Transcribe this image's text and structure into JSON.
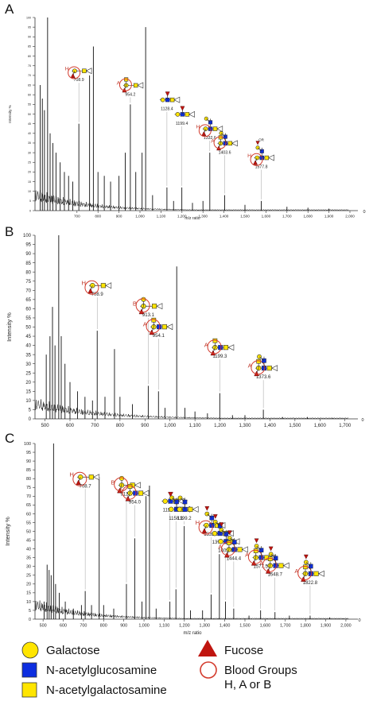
{
  "chart_data": [
    {
      "panel": "A",
      "type": "line",
      "xlabel": "m/z ratio",
      "ylabel": "Intensity %",
      "xticks": [
        700,
        800,
        900,
        1000,
        1100,
        1200,
        1300,
        1400,
        1500,
        1600,
        1700,
        1800,
        1900,
        2000
      ],
      "xtick_labels": [
        "700",
        "800",
        "900",
        "1,000",
        "1,100",
        "1,200",
        "1,300",
        "1,400",
        "1,500",
        "1,600",
        "1,700",
        "1,800",
        "1,900",
        "2,000"
      ],
      "xlim": [
        500,
        2000
      ],
      "yticks": [
        0,
        5,
        10,
        15,
        20,
        25,
        30,
        35,
        40,
        45,
        50,
        55,
        60,
        65,
        70,
        75,
        80,
        85,
        90,
        95,
        100
      ],
      "ylim": [
        0,
        100
      ],
      "right_zero_label": "0",
      "peaks": [
        {
          "x": 525,
          "y": 65
        },
        {
          "x": 535,
          "y": 58
        },
        {
          "x": 545,
          "y": 52
        },
        {
          "x": 560,
          "y": 100
        },
        {
          "x": 572,
          "y": 40
        },
        {
          "x": 585,
          "y": 35
        },
        {
          "x": 600,
          "y": 30
        },
        {
          "x": 620,
          "y": 25
        },
        {
          "x": 640,
          "y": 20
        },
        {
          "x": 660,
          "y": 18
        },
        {
          "x": 680,
          "y": 15
        },
        {
          "x": 708.9,
          "y": 45
        },
        {
          "x": 760,
          "y": 70
        },
        {
          "x": 778,
          "y": 85
        },
        {
          "x": 800,
          "y": 20
        },
        {
          "x": 830,
          "y": 18
        },
        {
          "x": 860,
          "y": 15
        },
        {
          "x": 900,
          "y": 18
        },
        {
          "x": 930,
          "y": 30
        },
        {
          "x": 954.2,
          "y": 55
        },
        {
          "x": 980,
          "y": 20
        },
        {
          "x": 1010,
          "y": 30
        },
        {
          "x": 1027,
          "y": 95
        },
        {
          "x": 1060,
          "y": 8
        },
        {
          "x": 1128.4,
          "y": 12
        },
        {
          "x": 1160,
          "y": 5
        },
        {
          "x": 1199.4,
          "y": 12
        },
        {
          "x": 1250,
          "y": 4
        },
        {
          "x": 1300,
          "y": 5
        },
        {
          "x": 1332.6,
          "y": 30
        },
        {
          "x": 1403.6,
          "y": 8
        },
        {
          "x": 1500,
          "y": 3
        },
        {
          "x": 1577.8,
          "y": 5
        },
        {
          "x": 1700,
          "y": 2
        },
        {
          "x": 1800,
          "y": 1.5
        },
        {
          "x": 1900,
          "y": 1
        }
      ],
      "annotations": [
        {
          "label": "708.9",
          "x": 708.9,
          "blood_group": "H"
        },
        {
          "label": "954.2",
          "x": 954.2,
          "blood_group": "A"
        },
        {
          "label": "1128.4",
          "x": 1128.4
        },
        {
          "label": "1199.4",
          "x": 1199.4
        },
        {
          "label": "1332.6",
          "x": 1332.6,
          "blood_group": "H"
        },
        {
          "label": "1403.6",
          "x": 1403.6,
          "blood_group": "A"
        },
        {
          "label": "1577.8",
          "x": 1577.8,
          "blood_group": "H",
          "note": "OR"
        }
      ]
    },
    {
      "panel": "B",
      "type": "line",
      "xlabel": "",
      "ylabel": "Intensity %",
      "xticks": [
        500,
        600,
        700,
        800,
        900,
        1000,
        1100,
        1200,
        1300,
        1400,
        1500,
        1600,
        1700
      ],
      "xtick_labels": [
        "500",
        "600",
        "700",
        "800",
        "900",
        "1,000",
        "1,100",
        "1,200",
        "1,300",
        "1,400",
        "1,500",
        "1,600",
        "1,700"
      ],
      "xlim": [
        460,
        1720
      ],
      "yticks": [
        0,
        5,
        10,
        15,
        20,
        25,
        30,
        35,
        40,
        45,
        50,
        55,
        60,
        65,
        70,
        75,
        80,
        85,
        90,
        95,
        100
      ],
      "ylim": [
        0,
        100
      ],
      "right_zero_label": "0",
      "peaks": [
        {
          "x": 505,
          "y": 35
        },
        {
          "x": 520,
          "y": 45
        },
        {
          "x": 530,
          "y": 61
        },
        {
          "x": 540,
          "y": 40
        },
        {
          "x": 555,
          "y": 100
        },
        {
          "x": 565,
          "y": 45
        },
        {
          "x": 580,
          "y": 30
        },
        {
          "x": 600,
          "y": 20
        },
        {
          "x": 630,
          "y": 15
        },
        {
          "x": 660,
          "y": 12
        },
        {
          "x": 690,
          "y": 10
        },
        {
          "x": 708.9,
          "y": 48
        },
        {
          "x": 740,
          "y": 12
        },
        {
          "x": 778,
          "y": 38
        },
        {
          "x": 800,
          "y": 12
        },
        {
          "x": 850,
          "y": 8
        },
        {
          "x": 913.1,
          "y": 18
        },
        {
          "x": 954.1,
          "y": 15
        },
        {
          "x": 980,
          "y": 6
        },
        {
          "x": 1027,
          "y": 83
        },
        {
          "x": 1060,
          "y": 6
        },
        {
          "x": 1100,
          "y": 4
        },
        {
          "x": 1150,
          "y": 3
        },
        {
          "x": 1199.3,
          "y": 14
        },
        {
          "x": 1250,
          "y": 2
        },
        {
          "x": 1300,
          "y": 2
        },
        {
          "x": 1373.6,
          "y": 5
        },
        {
          "x": 1450,
          "y": 1
        },
        {
          "x": 1550,
          "y": 1
        },
        {
          "x": 1650,
          "y": 0.5
        }
      ],
      "annotations": [
        {
          "label": "708.9",
          "x": 708.9,
          "blood_group": "H"
        },
        {
          "label": "913.1",
          "x": 913.1,
          "blood_group": "B"
        },
        {
          "label": "954.1",
          "x": 954.1,
          "blood_group": "A"
        },
        {
          "label": "1199.3",
          "x": 1199.3,
          "blood_group": "A"
        },
        {
          "label": "1373.6",
          "x": 1373.6,
          "blood_group": "A"
        }
      ]
    },
    {
      "panel": "C",
      "type": "line",
      "xlabel": "m/z ratio",
      "ylabel": "Intensity %",
      "xticks": [
        500,
        600,
        700,
        800,
        900,
        1000,
        1100,
        1200,
        1300,
        1400,
        1500,
        1600,
        1700,
        1800,
        1900,
        2000
      ],
      "xtick_labels": [
        "500",
        "600",
        "700",
        "800",
        "900",
        "1,000",
        "1,100",
        "1,200",
        "1,300",
        "1,400",
        "1,500",
        "1,600",
        "1,700",
        "1,800",
        "1,900",
        "2,000"
      ],
      "xlim": [
        460,
        2020
      ],
      "yticks": [
        0,
        5,
        10,
        15,
        20,
        25,
        30,
        35,
        40,
        45,
        50,
        55,
        60,
        65,
        70,
        75,
        80,
        85,
        90,
        95,
        100
      ],
      "ylim": [
        0,
        100
      ],
      "right_zero_label": "0",
      "peaks": [
        {
          "x": 505,
          "y": 10
        },
        {
          "x": 520,
          "y": 31
        },
        {
          "x": 530,
          "y": 28
        },
        {
          "x": 540,
          "y": 25
        },
        {
          "x": 552,
          "y": 100
        },
        {
          "x": 562,
          "y": 20
        },
        {
          "x": 580,
          "y": 15
        },
        {
          "x": 610,
          "y": 10
        },
        {
          "x": 650,
          "y": 6
        },
        {
          "x": 690,
          "y": 8
        },
        {
          "x": 708.7,
          "y": 16
        },
        {
          "x": 740,
          "y": 8
        },
        {
          "x": 778,
          "y": 81
        },
        {
          "x": 800,
          "y": 8
        },
        {
          "x": 850,
          "y": 6
        },
        {
          "x": 912.9,
          "y": 20
        },
        {
          "x": 954,
          "y": 46
        },
        {
          "x": 990,
          "y": 10
        },
        {
          "x": 1010,
          "y": 70
        },
        {
          "x": 1027,
          "y": 76
        },
        {
          "x": 1060,
          "y": 6
        },
        {
          "x": 1128.2,
          "y": 10
        },
        {
          "x": 1158.1,
          "y": 17
        },
        {
          "x": 1199.2,
          "y": 53
        },
        {
          "x": 1230,
          "y": 5
        },
        {
          "x": 1290,
          "y": 5
        },
        {
          "x": 1332.3,
          "y": 14
        },
        {
          "x": 1373.4,
          "y": 37
        },
        {
          "x": 1403.4,
          "y": 10
        },
        {
          "x": 1444.4,
          "y": 6
        },
        {
          "x": 1520,
          "y": 2
        },
        {
          "x": 1577.5,
          "y": 5
        },
        {
          "x": 1648.7,
          "y": 4
        },
        {
          "x": 1720,
          "y": 2
        },
        {
          "x": 1822.8,
          "y": 2
        },
        {
          "x": 1920,
          "y": 1
        }
      ],
      "annotations": [
        {
          "label": "708.7",
          "x": 708.7,
          "blood_group": "H"
        },
        {
          "label": "912.9",
          "x": 912.9,
          "blood_group": "B"
        },
        {
          "label": "954.0",
          "x": 954.0,
          "blood_group": "A"
        },
        {
          "label": "1128.2",
          "x": 1128.2
        },
        {
          "label": "1158.1",
          "x": 1158.1
        },
        {
          "label": "1199.2",
          "x": 1199.2
        },
        {
          "label": "1332.3",
          "x": 1332.3,
          "blood_group": "H"
        },
        {
          "label": "1373.4",
          "x": 1373.4
        },
        {
          "label": "1403.4",
          "x": 1403.4
        },
        {
          "label": "1444.4",
          "x": 1444.4,
          "blood_group": "A"
        },
        {
          "label": "1577.5",
          "x": 1577.5,
          "blood_group": "A"
        },
        {
          "label": "1648.7",
          "x": 1648.7,
          "blood_group": "A"
        },
        {
          "label": "1822.8",
          "x": 1822.8,
          "blood_group": "A"
        }
      ]
    }
  ],
  "legend": {
    "items": [
      {
        "label": "Galactose",
        "shape": "circle",
        "fill": "#ffe500"
      },
      {
        "label": "Fucose",
        "shape": "triangle",
        "fill": "#c0150f"
      },
      {
        "label": "N-acetylglucosamine",
        "shape": "square",
        "fill": "#0d2ee0"
      },
      {
        "label": "Blood Groups",
        "label2": "H, A or B",
        "shape": "ring",
        "stroke": "#d33a2c"
      },
      {
        "label": "N-acetylgalactosamine",
        "shape": "square",
        "fill": "#ffe500"
      }
    ]
  },
  "colors": {
    "galactose": "#ffe500",
    "glcnac": "#0d2ee0",
    "galnac": "#ffe500",
    "fucose": "#c0150f",
    "blood_group_ring": "#d33a2c",
    "spectrum": "#111111"
  }
}
